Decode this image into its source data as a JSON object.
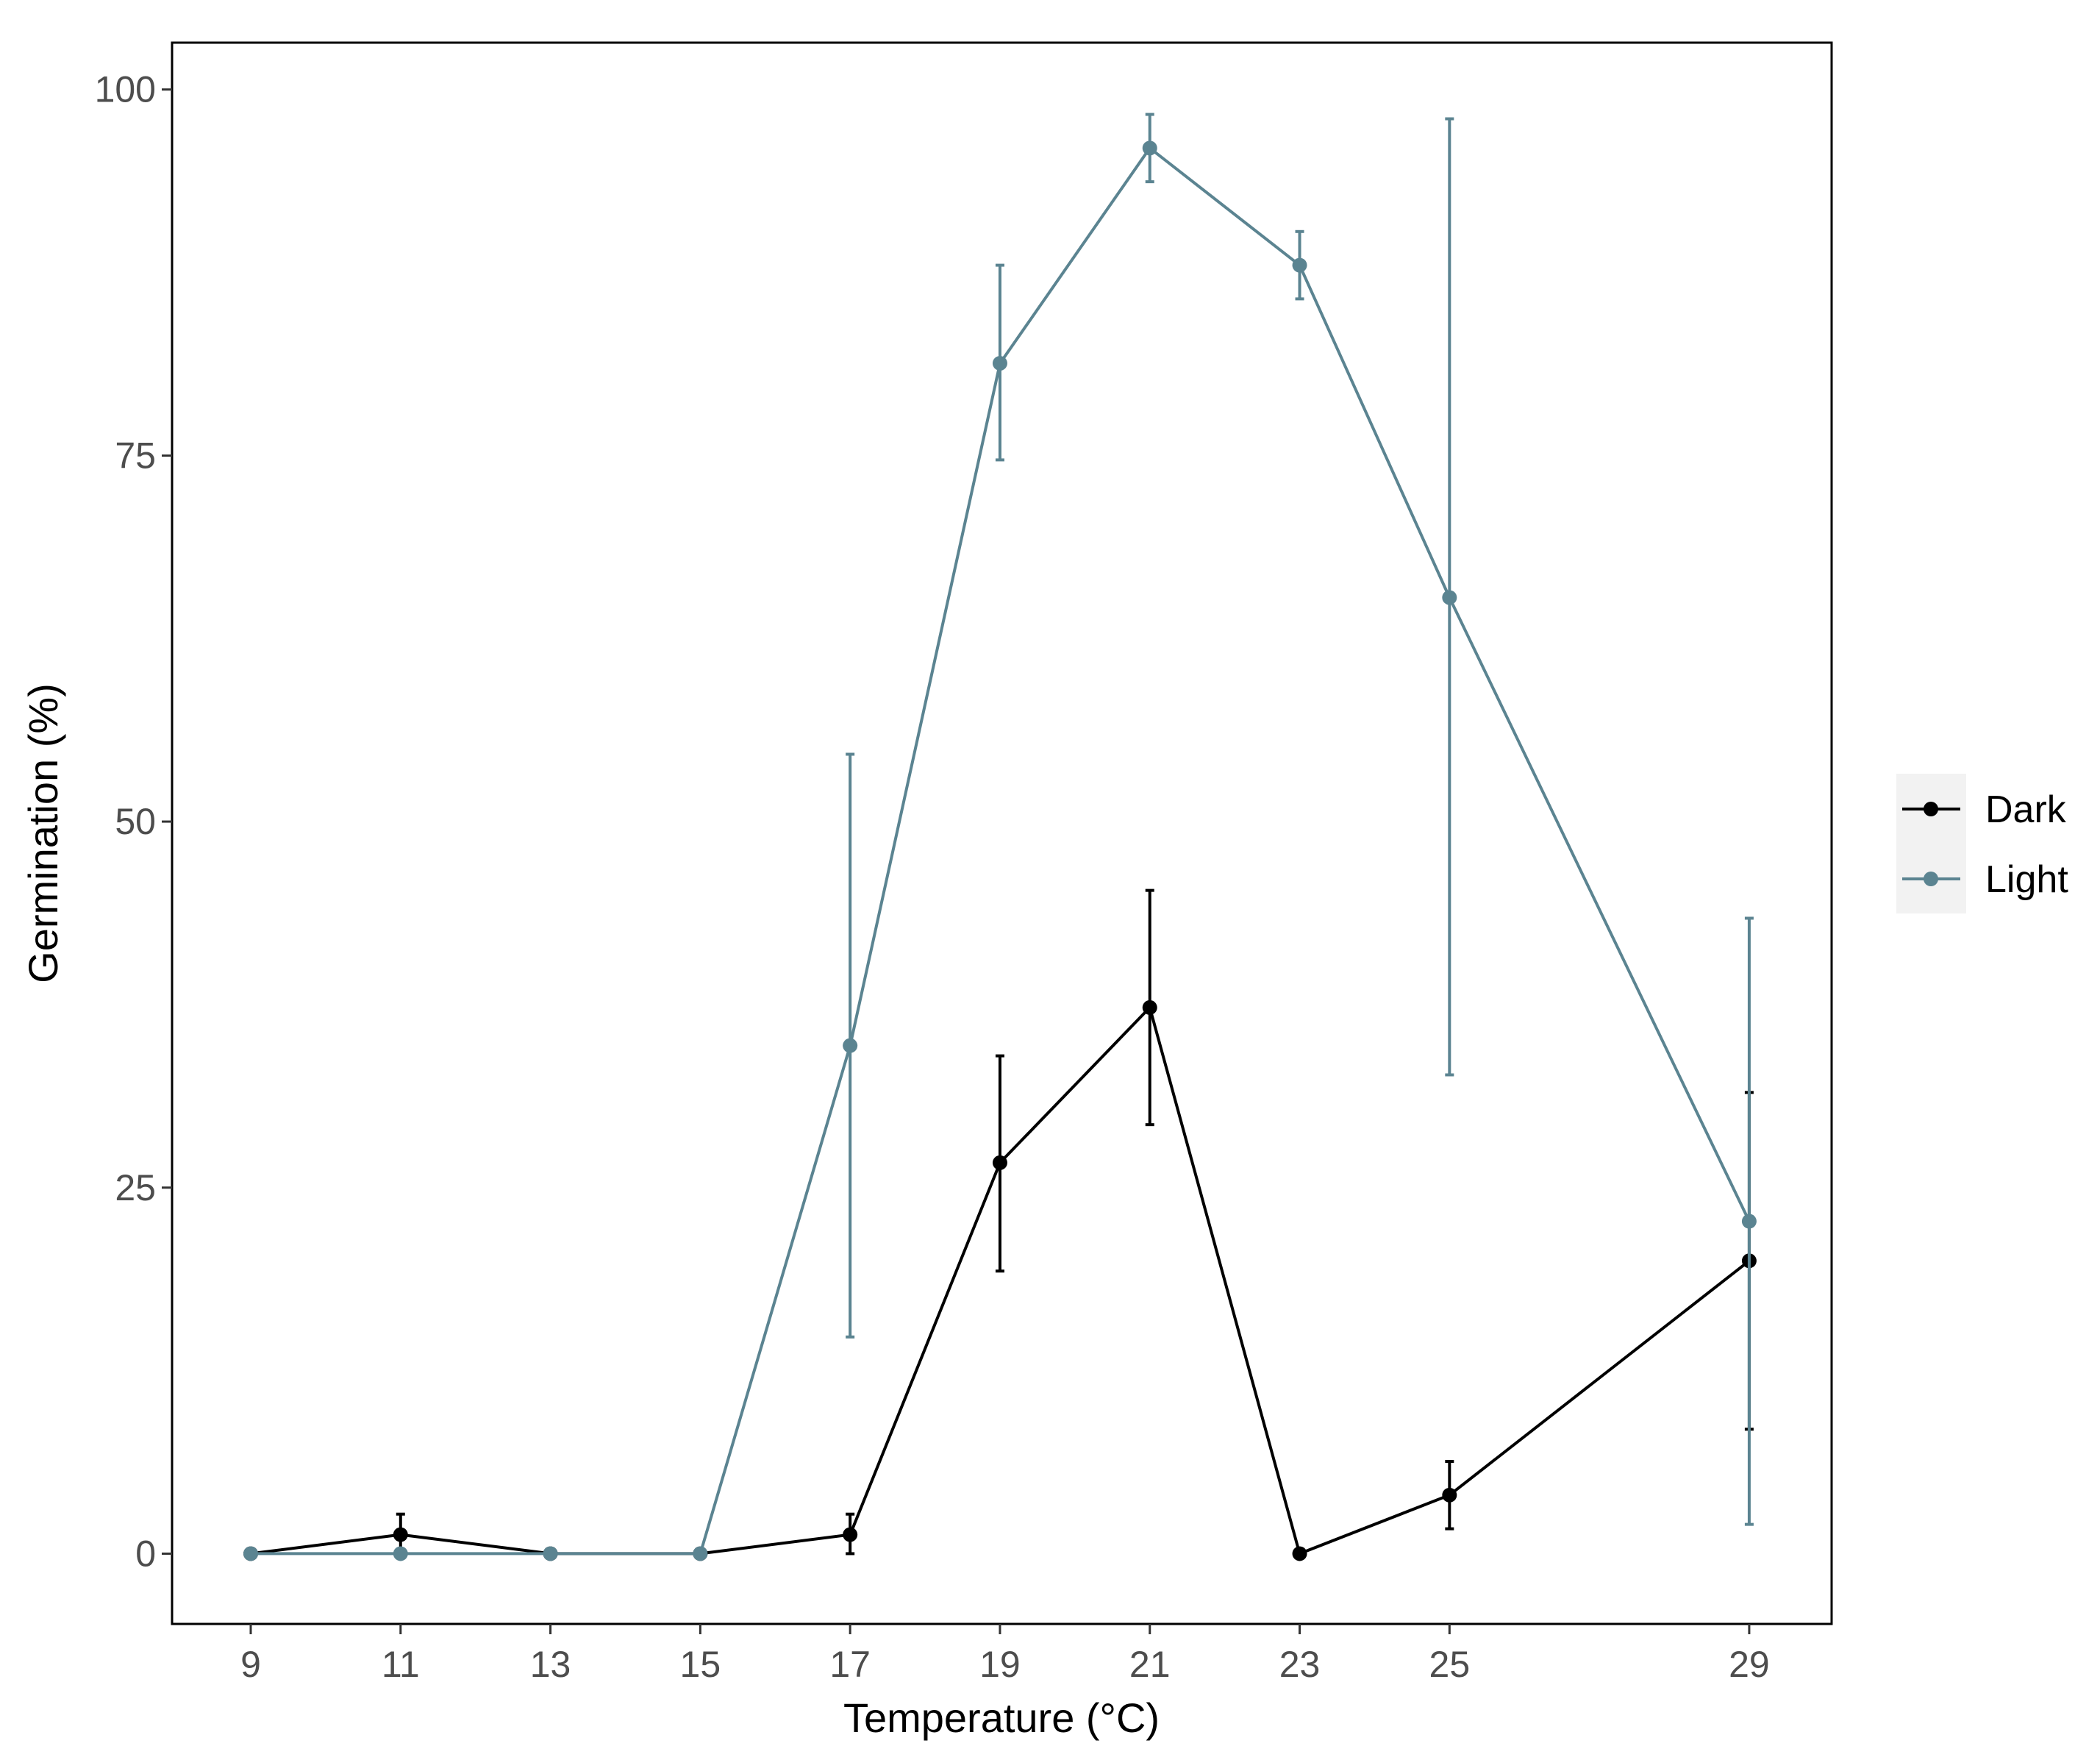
{
  "chart_data": {
    "type": "line",
    "title": "",
    "xlabel": "Temperature (°C)",
    "ylabel": "Germination (%)",
    "x": [
      9,
      11,
      13,
      15,
      17,
      19,
      21,
      23,
      25,
      29
    ],
    "x_tick_labels": [
      "9",
      "11",
      "13",
      "15",
      "17",
      "19",
      "21",
      "23",
      "25",
      "29"
    ],
    "xlim": [
      7.95,
      30.1
    ],
    "ylim": [
      -4.8,
      103.2
    ],
    "y_ticks": [
      0,
      25,
      50,
      75,
      100
    ],
    "y_tick_labels": [
      "0",
      "25",
      "50",
      "75",
      "100"
    ],
    "grid": false,
    "legend_position": "right",
    "series": [
      {
        "name": "Dark",
        "color": "#000000",
        "values": [
          0,
          1.3,
          0,
          0,
          1.3,
          26.7,
          37.3,
          0,
          4.0,
          20.0
        ],
        "err_low": [
          0,
          0,
          0,
          0,
          0,
          19.3,
          29.3,
          0,
          1.7,
          8.5
        ],
        "err_high": [
          0,
          2.7,
          0,
          0,
          2.7,
          34.0,
          45.3,
          0,
          6.3,
          31.5
        ]
      },
      {
        "name": "Light",
        "color": "#5b8491",
        "values": [
          0,
          0,
          0,
          0,
          34.7,
          81.3,
          96.0,
          88.0,
          65.3,
          22.7
        ],
        "err_low": [
          0,
          0,
          0,
          0,
          14.8,
          74.7,
          93.7,
          85.7,
          32.7,
          2.0
        ],
        "err_high": [
          0,
          0,
          0,
          0,
          54.6,
          88.0,
          98.3,
          90.3,
          98.0,
          43.4
        ]
      }
    ]
  }
}
